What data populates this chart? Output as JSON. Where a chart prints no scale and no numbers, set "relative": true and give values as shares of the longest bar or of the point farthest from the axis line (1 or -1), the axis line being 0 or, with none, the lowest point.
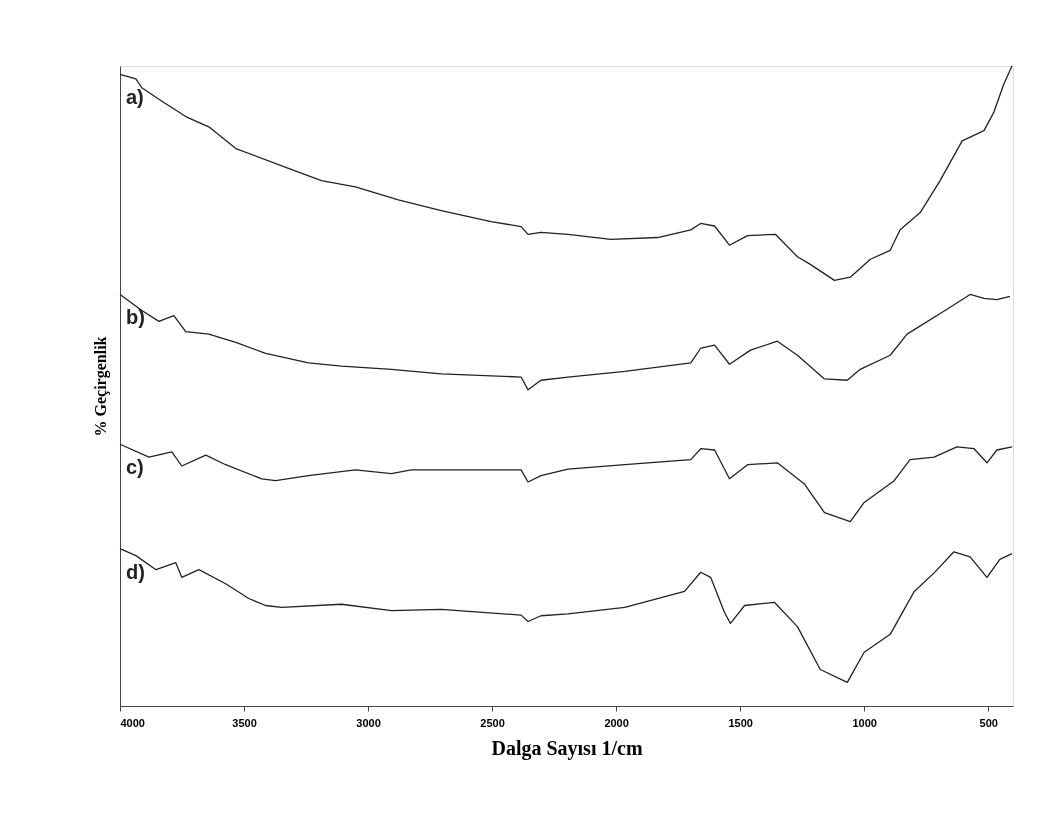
{
  "chart_data": {
    "type": "line",
    "xlabel": "Dalga Sayısı 1/cm",
    "ylabel": "% Geçirgenlik",
    "relative": true,
    "xlim": [
      4000,
      400
    ],
    "xticks": [
      4000,
      3500,
      3000,
      2500,
      2000,
      1500,
      1000,
      500
    ],
    "grid": false,
    "legend": false,
    "marker": "none",
    "line_style": "solid",
    "series": [
      {
        "name": "a)",
        "color": "#222222",
        "x": [
          4000,
          3936,
          3912,
          3831,
          3735,
          3642,
          3533,
          3348,
          3188,
          3051,
          2878,
          2705,
          2504,
          2383,
          2355,
          2303,
          2194,
          2021,
          1832,
          1699,
          1659,
          1603,
          1543,
          1470,
          1358,
          1269,
          1217,
          1120,
          1056,
          975,
          895,
          855,
          774,
          694,
          605,
          517,
          477,
          437,
          404
        ],
        "values": [
          0.987,
          0.98,
          0.966,
          0.945,
          0.921,
          0.905,
          0.871,
          0.844,
          0.821,
          0.811,
          0.791,
          0.774,
          0.757,
          0.749,
          0.737,
          0.74,
          0.737,
          0.729,
          0.732,
          0.744,
          0.754,
          0.75,
          0.72,
          0.735,
          0.737,
          0.702,
          0.69,
          0.665,
          0.67,
          0.698,
          0.712,
          0.744,
          0.771,
          0.821,
          0.883,
          0.899,
          0.928,
          0.972,
          1.0
        ]
      },
      {
        "name": "b)",
        "color": "#222222",
        "x": [
          4000,
          3912,
          3843,
          3783,
          3735,
          3642,
          3533,
          3413,
          3240,
          3107,
          2906,
          2705,
          2383,
          2355,
          2303,
          2194,
          1965,
          1699,
          1659,
          1603,
          1543,
          1458,
          1350,
          1269,
          1160,
          1068,
          1016,
          895,
          827,
          666,
          573,
          517,
          465,
          412
        ],
        "values": [
          0.643,
          0.618,
          0.601,
          0.61,
          0.585,
          0.581,
          0.568,
          0.551,
          0.536,
          0.531,
          0.526,
          0.519,
          0.514,
          0.494,
          0.509,
          0.514,
          0.523,
          0.536,
          0.559,
          0.564,
          0.534,
          0.556,
          0.57,
          0.548,
          0.511,
          0.509,
          0.526,
          0.548,
          0.581,
          0.62,
          0.643,
          0.637,
          0.635,
          0.64
        ]
      },
      {
        "name": "c)",
        "color": "#222222",
        "x": [
          4000,
          3883,
          3791,
          3751,
          3654,
          3574,
          3429,
          3373,
          3240,
          3051,
          2906,
          2826,
          2383,
          2355,
          2303,
          2194,
          1965,
          1699,
          1659,
          1603,
          1543,
          1470,
          1350,
          1241,
          1160,
          1056,
          1000,
          879,
          815,
          718,
          626,
          557,
          505,
          465,
          404
        ],
        "values": [
          0.409,
          0.389,
          0.397,
          0.375,
          0.392,
          0.377,
          0.355,
          0.352,
          0.36,
          0.369,
          0.363,
          0.369,
          0.369,
          0.35,
          0.36,
          0.37,
          0.377,
          0.385,
          0.402,
          0.4,
          0.355,
          0.377,
          0.38,
          0.347,
          0.302,
          0.288,
          0.318,
          0.352,
          0.385,
          0.389,
          0.405,
          0.402,
          0.38,
          0.4,
          0.405
        ]
      },
      {
        "name": "d)",
        "color": "#222222",
        "x": [
          4000,
          3936,
          3855,
          3775,
          3751,
          3682,
          3574,
          3481,
          3413,
          3348,
          3107,
          2906,
          2705,
          2383,
          2355,
          2303,
          2194,
          1965,
          1724,
          1659,
          1619,
          1563,
          1539,
          1482,
          1362,
          1269,
          1177,
          1068,
          1000,
          895,
          798,
          718,
          638,
          573,
          505,
          453,
          404
        ],
        "values": [
          0.246,
          0.235,
          0.213,
          0.224,
          0.201,
          0.213,
          0.191,
          0.168,
          0.157,
          0.154,
          0.159,
          0.149,
          0.151,
          0.142,
          0.132,
          0.141,
          0.144,
          0.154,
          0.179,
          0.209,
          0.201,
          0.146,
          0.129,
          0.157,
          0.162,
          0.124,
          0.057,
          0.037,
          0.084,
          0.112,
          0.179,
          0.208,
          0.241,
          0.233,
          0.201,
          0.229,
          0.238
        ]
      }
    ]
  }
}
